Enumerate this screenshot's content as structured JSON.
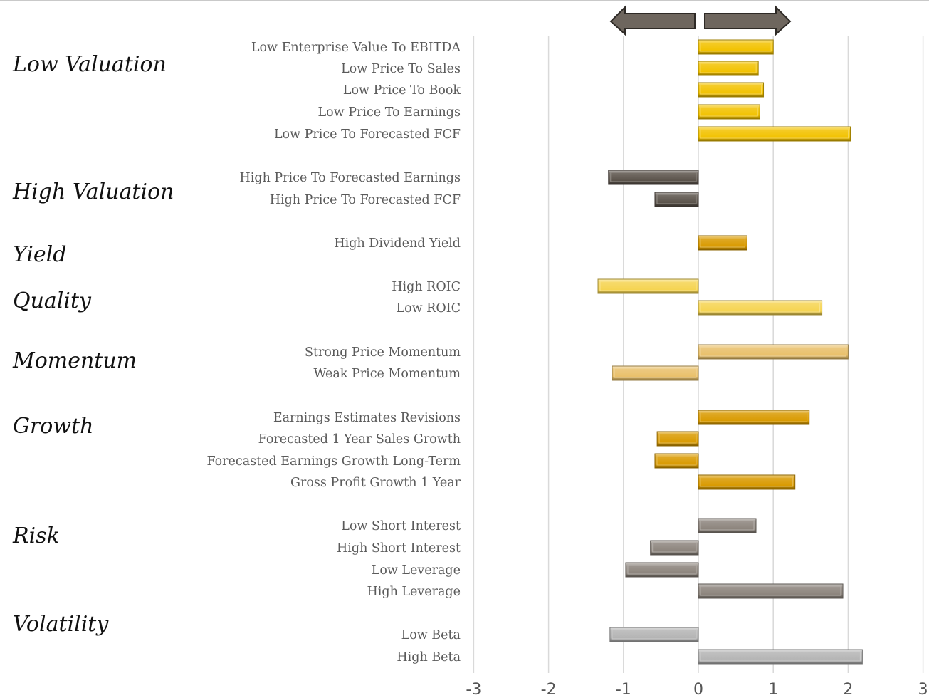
{
  "groups": [
    {
      "label": "Low Valuation",
      "color": "#F2C200"
    },
    {
      "label": "High Valuation",
      "color": "#5A524A"
    },
    {
      "label": "Yield",
      "color": "#D99A00"
    },
    {
      "label": "Quality",
      "color": "#F5D451"
    },
    {
      "label": "Momentum",
      "color": "#E9C06A"
    },
    {
      "label": "Growth",
      "color": "#D99A00"
    },
    {
      "label": "Risk",
      "color": "#8C847C"
    },
    {
      "label": "Volatility",
      "color": "#B4B4B4"
    }
  ],
  "chart_data": {
    "type": "bar",
    "orientation": "horizontal",
    "categories": [
      "Low Enterprise Value To EBITDA",
      "Low Price To Sales",
      "Low Price To Book",
      "Low Price To Earnings",
      "Low Price To Forecasted FCF",
      "High Price To Forecasted Earnings",
      "High Price To Forecasted FCF",
      "High Dividend Yield",
      "High ROIC",
      "Low ROIC",
      "Strong Price Momentum",
      "Weak Price Momentum",
      "Earnings Estimates Revisions",
      "Forecasted 1 Year Sales Growth",
      "Forecasted Earnings Growth Long-Term",
      "Gross Profit Growth 1 Year",
      "Low Short Interest",
      "High Short Interest",
      "Low Leverage",
      "High Leverage",
      "Low Beta",
      "High Beta"
    ],
    "values": [
      1.0,
      0.8,
      0.87,
      0.82,
      2.03,
      -1.2,
      -0.58,
      0.65,
      -1.34,
      1.65,
      2.0,
      -1.15,
      1.48,
      -0.55,
      -0.58,
      1.29,
      0.77,
      -0.64,
      -0.97,
      1.93,
      -1.18,
      2.19
    ],
    "groups": [
      "Low Valuation",
      "Low Valuation",
      "Low Valuation",
      "Low Valuation",
      "Low Valuation",
      "High Valuation",
      "High Valuation",
      "Yield",
      "Quality",
      "Quality",
      "Momentum",
      "Momentum",
      "Growth",
      "Growth",
      "Growth",
      "Growth",
      "Risk",
      "Risk",
      "Risk",
      "Risk",
      "Volatility",
      "Volatility"
    ],
    "xlim": [
      -3,
      3
    ],
    "xticks": [
      "-3",
      "-2",
      "-1",
      "0",
      "1",
      "2",
      "3"
    ],
    "grid": true,
    "legend": "none"
  }
}
